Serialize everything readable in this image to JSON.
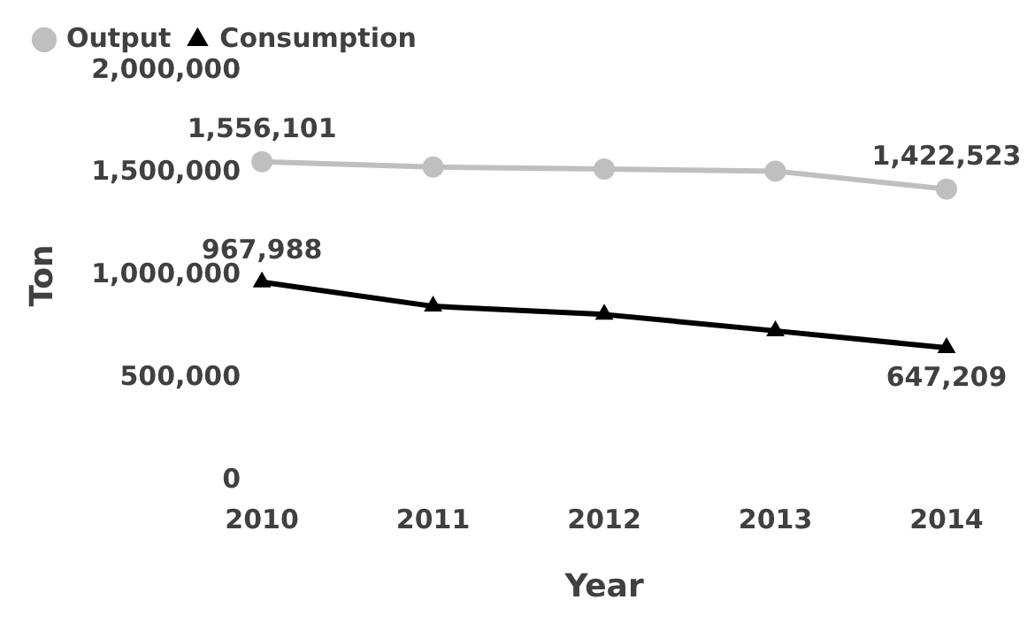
{
  "chart_data": {
    "type": "line",
    "xlabel": "Year",
    "ylabel": "Ton",
    "categories": [
      "2010",
      "2011",
      "2012",
      "2013",
      "2014"
    ],
    "series": [
      {
        "name": "Output",
        "color": "#bfbfbf",
        "marker": "circle",
        "values": [
          1556101,
          1530000,
          1520000,
          1510000,
          1422523
        ],
        "value_labels": [
          "1,556,101",
          null,
          null,
          null,
          "1,422,523"
        ]
      },
      {
        "name": "Consumption",
        "color": "#000000",
        "marker": "triangle",
        "values": [
          967988,
          850000,
          810000,
          730000,
          647209
        ],
        "value_labels": [
          "967,988",
          null,
          null,
          null,
          "647,209"
        ]
      }
    ],
    "ylim": [
      0,
      2000000
    ],
    "yticks": [
      {
        "value": 0,
        "label": "0"
      },
      {
        "value": 500000,
        "label": "500,000"
      },
      {
        "value": 1000000,
        "label": "1,000,000"
      },
      {
        "value": 1500000,
        "label": "1,500,000"
      },
      {
        "value": 2000000,
        "label": "2,000,000"
      }
    ],
    "grid": false,
    "legend": "top left",
    "line_style": "solid"
  }
}
